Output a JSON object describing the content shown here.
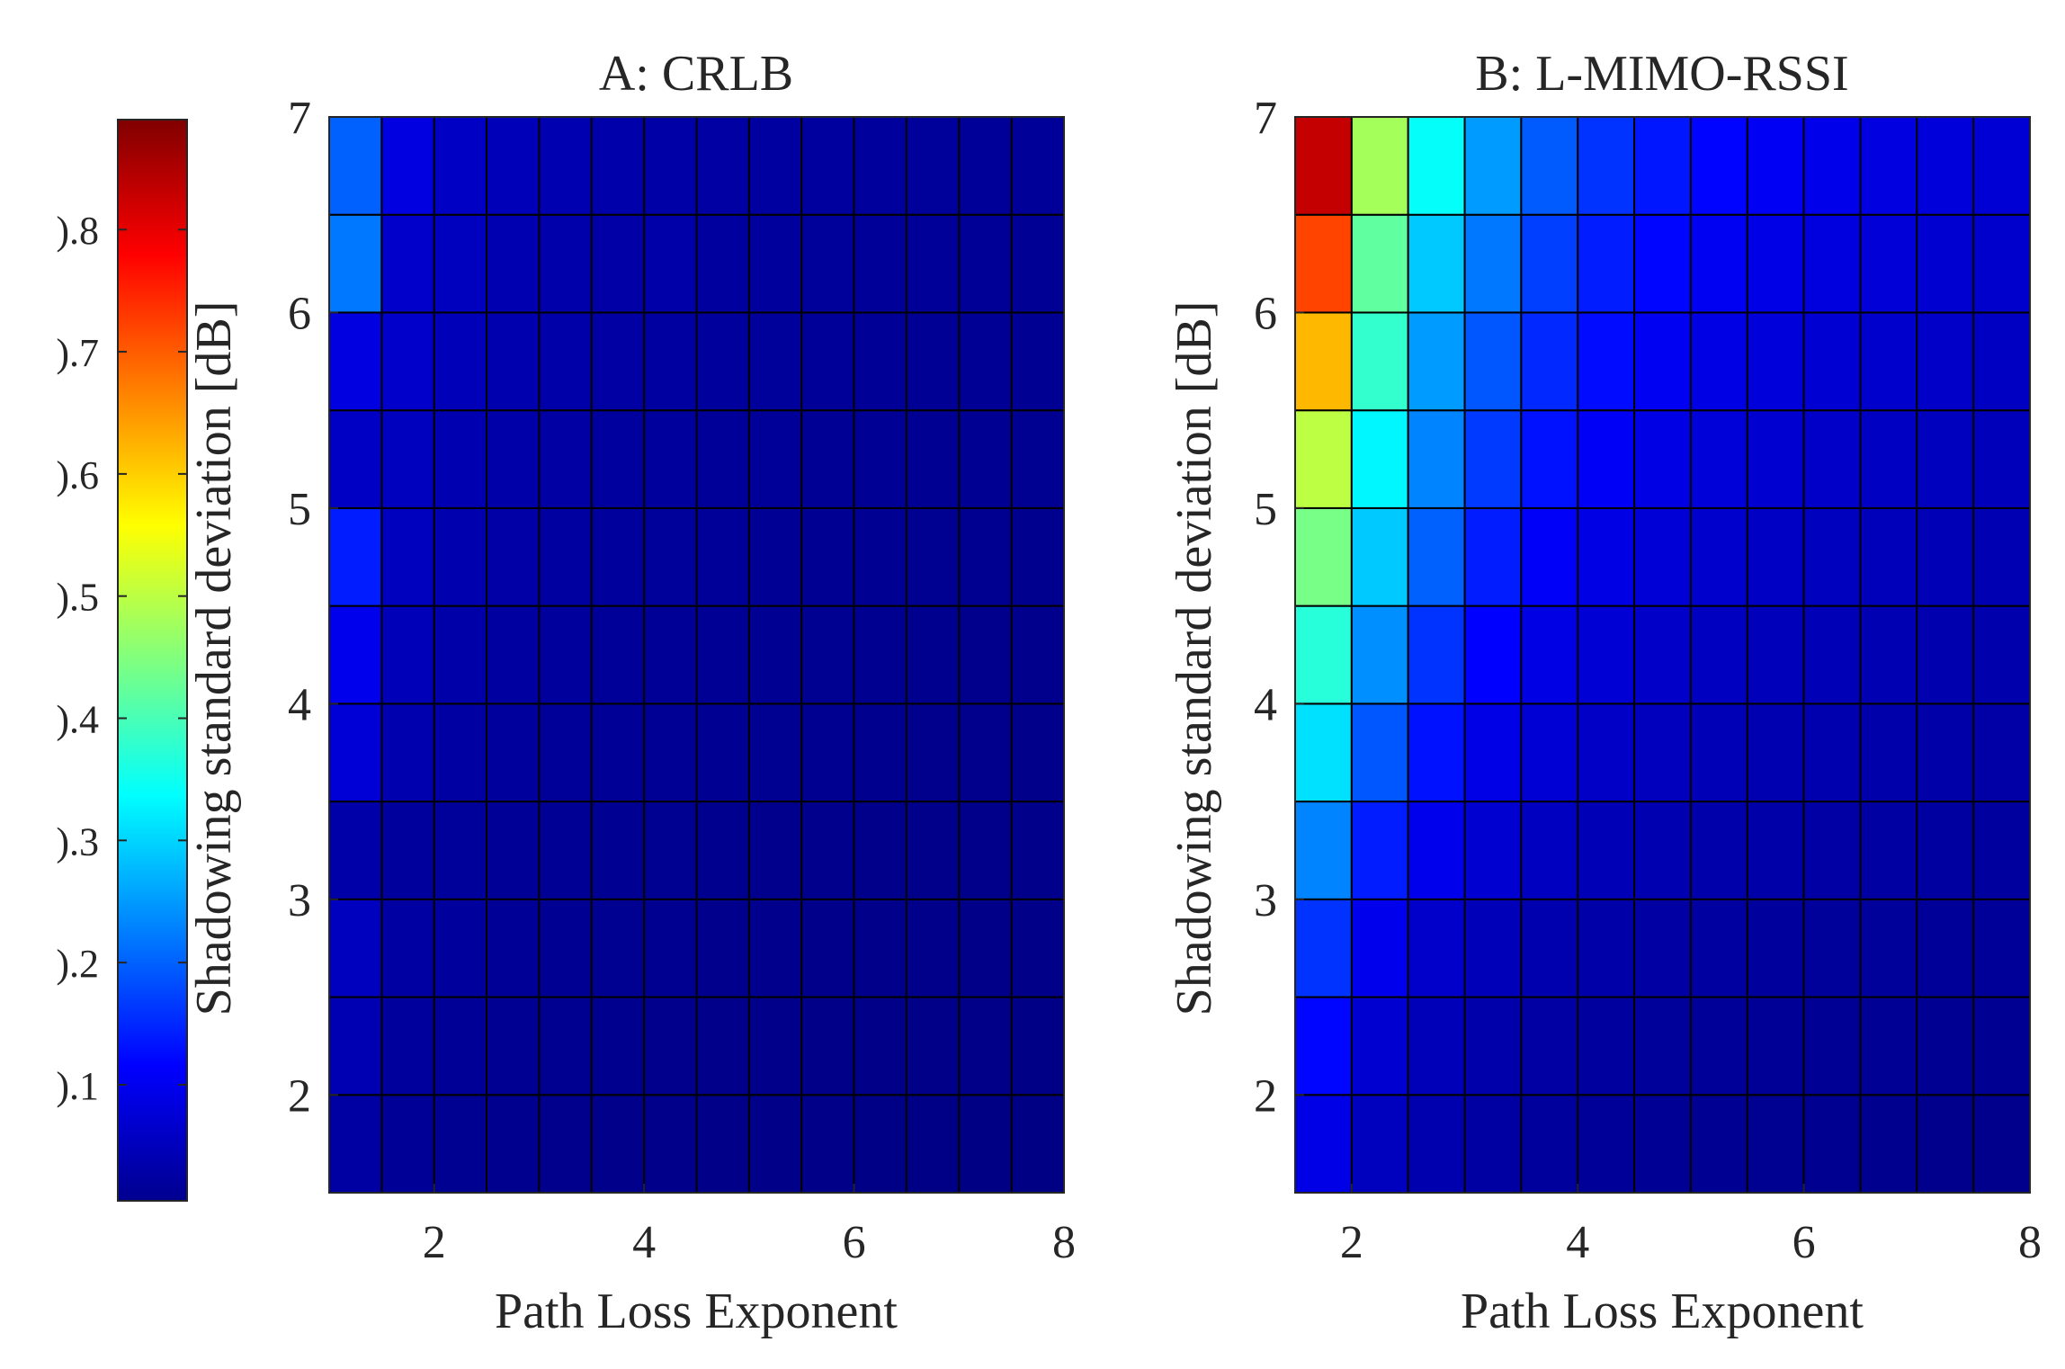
{
  "chart_data": [
    {
      "type": "heatmap",
      "title": "A: CRLB",
      "xlabel": "Path Loss Exponent",
      "ylabel": "Shadowing standard deviation [dB]",
      "x": [
        1,
        1.5,
        2,
        2.5,
        3,
        3.5,
        4,
        4.5,
        5,
        5.5,
        6,
        6.5,
        7,
        7.5
      ],
      "y": [
        1.5,
        2,
        2.5,
        3,
        3.5,
        4,
        4.5,
        5,
        5.5,
        6,
        6.5
      ],
      "xlim": [
        1,
        8
      ],
      "ylim": [
        1.5,
        7
      ],
      "xticks": [
        "2",
        "4",
        "6",
        "8"
      ],
      "yticks": [
        "2",
        "3",
        "4",
        "5",
        "6",
        "7"
      ],
      "values": [
        [
          0.035,
          0.025,
          0.02,
          0.018,
          0.016,
          0.015,
          0.014,
          0.013,
          0.012,
          0.012,
          0.011,
          0.011,
          0.01,
          0.01
        ],
        [
          0.05,
          0.03,
          0.025,
          0.022,
          0.019,
          0.018,
          0.016,
          0.015,
          0.014,
          0.013,
          0.013,
          0.012,
          0.012,
          0.011
        ],
        [
          0.06,
          0.035,
          0.03,
          0.025,
          0.022,
          0.02,
          0.019,
          0.017,
          0.016,
          0.015,
          0.014,
          0.014,
          0.013,
          0.013
        ],
        [
          0.04,
          0.03,
          0.028,
          0.025,
          0.023,
          0.021,
          0.02,
          0.018,
          0.017,
          0.016,
          0.015,
          0.015,
          0.014,
          0.014
        ],
        [
          0.08,
          0.045,
          0.035,
          0.03,
          0.027,
          0.025,
          0.023,
          0.021,
          0.02,
          0.019,
          0.018,
          0.017,
          0.016,
          0.015
        ],
        [
          0.1,
          0.055,
          0.04,
          0.034,
          0.03,
          0.027,
          0.025,
          0.023,
          0.022,
          0.02,
          0.019,
          0.018,
          0.017,
          0.017
        ],
        [
          0.14,
          0.06,
          0.045,
          0.038,
          0.033,
          0.03,
          0.028,
          0.026,
          0.024,
          0.022,
          0.021,
          0.02,
          0.019,
          0.018
        ],
        [
          0.065,
          0.06,
          0.048,
          0.041,
          0.036,
          0.032,
          0.03,
          0.027,
          0.026,
          0.024,
          0.023,
          0.022,
          0.021,
          0.02
        ],
        [
          0.09,
          0.07,
          0.055,
          0.045,
          0.04,
          0.036,
          0.033,
          0.03,
          0.028,
          0.026,
          0.025,
          0.024,
          0.023,
          0.022
        ],
        [
          0.22,
          0.07,
          0.06,
          0.048,
          0.042,
          0.038,
          0.04,
          0.032,
          0.03,
          0.028,
          0.027,
          0.026,
          0.025,
          0.024
        ],
        [
          0.2,
          0.09,
          0.065,
          0.055,
          0.048,
          0.043,
          0.039,
          0.036,
          0.034,
          0.032,
          0.03,
          0.028,
          0.027,
          0.026
        ]
      ]
    },
    {
      "type": "heatmap",
      "title": "B: L-MIMO-RSSI",
      "xlabel": "Path Loss Exponent",
      "ylabel": "Shadowing standard deviation [dB]",
      "x": [
        1.5,
        2,
        2.5,
        3,
        3.5,
        4,
        4.5,
        5,
        5.5,
        6,
        6.5,
        7,
        7.5
      ],
      "y": [
        1.5,
        2,
        2.5,
        3,
        3.5,
        4,
        4.5,
        5,
        5.5,
        6,
        6.5
      ],
      "xlim": [
        1.5,
        8
      ],
      "ylim": [
        1.5,
        7
      ],
      "xticks": [
        "2",
        "4",
        "6",
        "8"
      ],
      "yticks": [
        "2",
        "3",
        "4",
        "5",
        "6",
        "7"
      ],
      "values": [
        [
          0.095,
          0.06,
          0.045,
          0.035,
          0.03,
          0.026,
          0.023,
          0.021,
          0.02,
          0.019,
          0.018,
          0.017,
          0.017
        ],
        [
          0.12,
          0.075,
          0.055,
          0.042,
          0.036,
          0.032,
          0.029,
          0.027,
          0.025,
          0.024,
          0.023,
          0.022,
          0.021
        ],
        [
          0.16,
          0.1,
          0.07,
          0.055,
          0.046,
          0.04,
          0.036,
          0.033,
          0.031,
          0.029,
          0.028,
          0.027,
          0.026
        ],
        [
          0.23,
          0.14,
          0.1,
          0.075,
          0.062,
          0.053,
          0.047,
          0.043,
          0.04,
          0.037,
          0.035,
          0.033,
          0.032
        ],
        [
          0.31,
          0.19,
          0.13,
          0.095,
          0.078,
          0.066,
          0.058,
          0.052,
          0.048,
          0.045,
          0.042,
          0.04,
          0.038
        ],
        [
          0.37,
          0.24,
          0.16,
          0.115,
          0.092,
          0.078,
          0.068,
          0.061,
          0.056,
          0.052,
          0.049,
          0.046,
          0.044
        ],
        [
          0.44,
          0.29,
          0.2,
          0.14,
          0.11,
          0.092,
          0.08,
          0.071,
          0.065,
          0.06,
          0.056,
          0.053,
          0.05
        ],
        [
          0.5,
          0.33,
          0.23,
          0.165,
          0.13,
          0.108,
          0.093,
          0.082,
          0.075,
          0.069,
          0.064,
          0.06,
          0.057
        ],
        [
          0.62,
          0.38,
          0.25,
          0.19,
          0.15,
          0.125,
          0.105,
          0.093,
          0.084,
          0.077,
          0.072,
          0.068,
          0.064
        ],
        [
          0.72,
          0.42,
          0.29,
          0.22,
          0.17,
          0.14,
          0.12,
          0.105,
          0.095,
          0.087,
          0.081,
          0.076,
          0.072
        ],
        [
          0.83,
          0.48,
          0.34,
          0.25,
          0.195,
          0.16,
          0.135,
          0.118,
          0.106,
          0.097,
          0.09,
          0.084,
          0.079
        ]
      ]
    }
  ],
  "colorbar": {
    "colormap": "jet",
    "range": [
      0.005,
      0.89
    ],
    "ticks": [
      0.1,
      0.2,
      0.3,
      0.4,
      0.5,
      0.6,
      0.7,
      0.8
    ],
    "tick_labels": [
      ").1",
      ").2",
      ").3",
      ").4",
      ").5",
      ").6",
      ").7",
      ").8"
    ]
  },
  "colors": {
    "grid_line": "#000000",
    "text": "#262626"
  }
}
